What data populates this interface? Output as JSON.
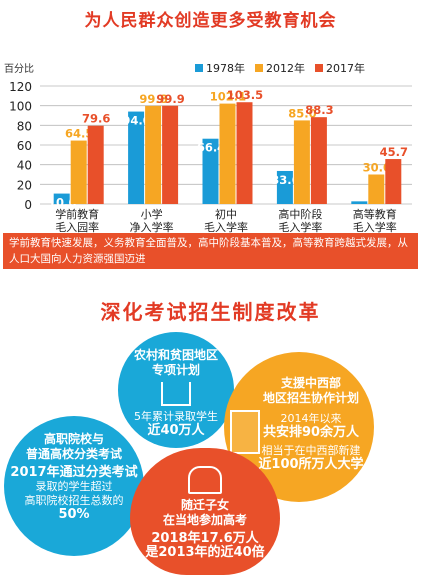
{
  "title": "为人民群众创造更多受教育机会",
  "unit_label": "百分比",
  "chart_data": {
    "type": "bar",
    "title": "为人民群众创造更多受教育机会",
    "ylabel": "百分比",
    "ylim": [
      0,
      100
    ],
    "yticks": [
      0,
      20,
      40,
      60,
      80,
      100,
      120
    ],
    "categories": [
      "学前教育\n毛入园率",
      "小学\n净入学率",
      "初中\n毛入学率",
      "高中阶段\n毛入学率",
      "高等教育\n毛入学率"
    ],
    "series": [
      {
        "name": "1978年",
        "color": "#1a9bd7",
        "values": [
          10.6,
          94.0,
          66.4,
          33.6,
          2.7
        ]
      },
      {
        "name": "2012年",
        "color": "#f6a623",
        "values": [
          64.5,
          99.8,
          102.1,
          85.0,
          30.0
        ]
      },
      {
        "name": "2017年",
        "color": "#e8502a",
        "values": [
          79.6,
          99.9,
          103.5,
          88.3,
          45.7
        ]
      }
    ],
    "value_labels": [
      [
        "10.6",
        "64.5",
        "79.6"
      ],
      [
        "94.0",
        "99.8",
        "99.9"
      ],
      [
        "66.4",
        "102.1",
        "103.5"
      ],
      [
        "33.6",
        "85.0",
        "88.3"
      ],
      [
        "2.7",
        "30.0",
        "45.7"
      ]
    ],
    "grid": true,
    "legend_position": "top-right"
  },
  "banner_text": "学前教育快速发展，义务教育全面普及，高中阶段基本普及，高等教育跨越式发展，从人口大国向人力资源强国迈进",
  "title2": "深化考试招生制度改革",
  "circles": {
    "c1": {
      "title": "农村和贫困地区\n专项计划",
      "body1": "5年累计录取学生",
      "body2": "近40万人",
      "icon": "house-icon"
    },
    "c2": {
      "title": "支援中西部\n地区招生协作计划",
      "body1": "2014年以来",
      "body2": "共安排90余万人",
      "body3": "相当于在中西部新建",
      "body4": "近100所万人大学",
      "icon": "building-icon"
    },
    "c3": {
      "title": "高职院校与\n普通高校分类考试",
      "body1": "2017年通过分类考试",
      "body2": "录取的学生超过",
      "body3": "高职院校招生总数的",
      "body4": "50%",
      "icon": "classroom-icon"
    },
    "c4": {
      "title": "随迁子女\n在当地参加高考",
      "body1": "2018年17.6万人",
      "body2": "是2013年的近40倍",
      "icon": "family-icon"
    }
  }
}
